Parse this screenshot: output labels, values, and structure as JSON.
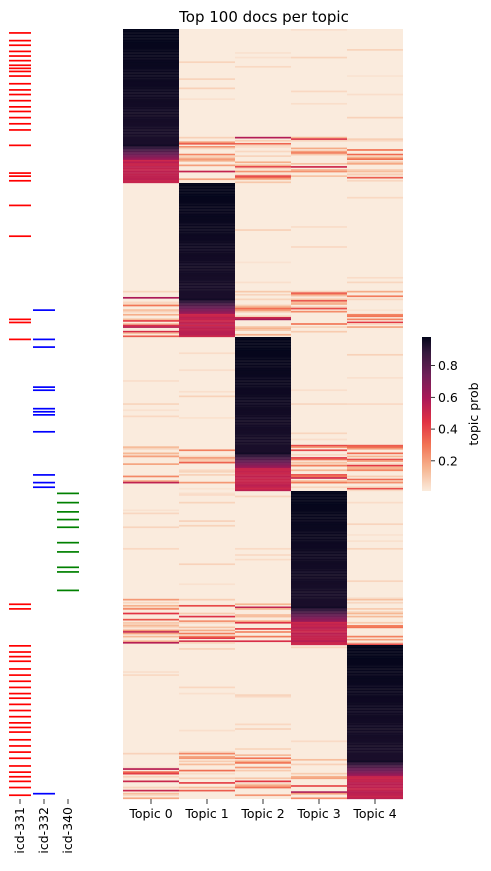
{
  "chart_data": [
    {
      "type": "heatmap",
      "title": "Top 100 docs per topic",
      "xlabel": "",
      "ylabel": "",
      "x_tick_labels": [
        "Topic 0",
        "Topic 1",
        "Topic 2",
        "Topic 3",
        "Topic 4"
      ],
      "n_rows": 500,
      "row_blocks": [
        {
          "rows": [
            0,
            99
          ],
          "dominant_topic": 0
        },
        {
          "rows": [
            100,
            199
          ],
          "dominant_topic": 1
        },
        {
          "rows": [
            200,
            299
          ],
          "dominant_topic": 2
        },
        {
          "rows": [
            300,
            399
          ],
          "dominant_topic": 3
        },
        {
          "rows": [
            400,
            499
          ],
          "dominant_topic": 4
        }
      ],
      "dominant_value_range": [
        0.55,
        0.98
      ],
      "background_value": 0.01,
      "colorbar": {
        "label": "topic prob",
        "ticks": [
          0.2,
          0.4,
          0.6,
          0.8
        ],
        "tick_labels": [
          "0.2",
          "0.4",
          "0.6",
          "0.8"
        ],
        "range": [
          0.01,
          0.98
        ],
        "colormap": "rocket_r"
      }
    },
    {
      "type": "heatmap",
      "title": "",
      "x_tick_labels": [
        "icd-331",
        "icd-332",
        "icd-340"
      ],
      "n_rows": 500,
      "series": [
        {
          "name": "icd-331",
          "color": "#ff0000",
          "rows": [
            2,
            7,
            10,
            14,
            17,
            20,
            23,
            25,
            27,
            30,
            35,
            39,
            42,
            46,
            50,
            53,
            57,
            61,
            65,
            75,
            93,
            95,
            98,
            114,
            134,
            188,
            190,
            201,
            373,
            376,
            400,
            404,
            407,
            410,
            415,
            419,
            423,
            427,
            431,
            434,
            438,
            442,
            446,
            450,
            453,
            456,
            461,
            465,
            469,
            473,
            478,
            482,
            485,
            488,
            492,
            497
          ]
        },
        {
          "name": "icd-332",
          "color": "#0000ff",
          "rows": [
            182,
            201,
            206,
            232,
            234,
            246,
            248,
            250,
            261,
            289,
            294,
            297,
            496
          ]
        },
        {
          "name": "icd-340",
          "color": "#008000",
          "rows": [
            301,
            307,
            313,
            318,
            323,
            333,
            339,
            349,
            352,
            364
          ]
        }
      ]
    }
  ]
}
